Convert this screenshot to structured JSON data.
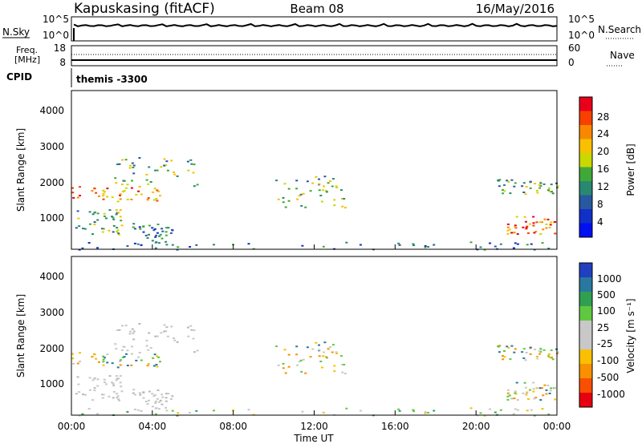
{
  "header": {
    "station": "Kapuskasing (fitACF)",
    "beam": "Beam 08",
    "date": "16/May/2016"
  },
  "panels": {
    "nsky_label": "N.Sky",
    "nsearch_label": "N.Search",
    "freq_label_line1": "Freq.",
    "freq_label_line2": "[MHz]",
    "nave_label": "Nave",
    "cpid_label": "CPID",
    "cpid_value": "themis -3300"
  },
  "noise_panel": {
    "left_ticks": [
      "10^5",
      "10^0"
    ],
    "right_ticks": [
      "10^5",
      "10^0"
    ]
  },
  "freq_panel": {
    "left_ticks": [
      "18",
      "8"
    ],
    "right_ticks": [
      "60",
      "0"
    ]
  },
  "power_colorbar": {
    "label": "Power [dB]",
    "ticks": [
      "28",
      "24",
      "20",
      "16",
      "12",
      "8",
      "4"
    ],
    "colors": [
      "#e8001a",
      "#f84000",
      "#f88800",
      "#f8c000",
      "#c8d800",
      "#40a838",
      "#288870",
      "#2858a0",
      "#1030c8",
      "#0010f0"
    ]
  },
  "velocity_colorbar": {
    "label": "Velocity [m s⁻¹]",
    "ticks": [
      "1000",
      "500",
      "100",
      "25",
      "-25",
      "-100",
      "-500",
      "-1000"
    ],
    "colors": [
      "#2040c0",
      "#2878a0",
      "#30a050",
      "#60c840",
      "#c8c8c8",
      "#c8c8c8",
      "#f8c000",
      "#f89000",
      "#f85000",
      "#e80010"
    ]
  },
  "chart_data": [
    {
      "type": "heatmap",
      "title": "Power",
      "ylabel": "Slant Range [km]",
      "yticks": [
        "1000",
        "2000",
        "3000",
        "4000"
      ],
      "ylim": [
        180,
        4500
      ],
      "xlim": [
        0,
        24
      ],
      "regions": [
        {
          "x": [
            0.0,
            4.6
          ],
          "y": [
            1500,
            1900
          ],
          "level": "high"
        },
        {
          "x": [
            2.0,
            6.2
          ],
          "y": [
            1900,
            2700
          ],
          "level": "mid"
        },
        {
          "x": [
            0.0,
            2.5
          ],
          "y": [
            600,
            1300
          ],
          "level": "mid"
        },
        {
          "x": [
            3.0,
            5.0
          ],
          "y": [
            300,
            900
          ],
          "level": "low"
        },
        {
          "x": [
            10.0,
            13.5
          ],
          "y": [
            1300,
            2200
          ],
          "level": "mid"
        },
        {
          "x": [
            21.0,
            24.0
          ],
          "y": [
            1700,
            2100
          ],
          "level": "mid"
        },
        {
          "x": [
            21.5,
            24.0
          ],
          "y": [
            600,
            1100
          ],
          "level": "high"
        },
        {
          "x": [
            0.0,
            24.0
          ],
          "y": [
            180,
            400
          ],
          "level": "low"
        }
      ]
    },
    {
      "type": "heatmap",
      "title": "Velocity",
      "ylabel": "Slant Range [km]",
      "yticks": [
        "1000",
        "2000",
        "3000",
        "4000"
      ],
      "ylim": [
        180,
        4500
      ],
      "xlim": [
        0,
        24
      ],
      "xticks": [
        "00:00",
        "04:00",
        "08:00",
        "12:00",
        "16:00",
        "20:00",
        "00:00"
      ],
      "xlabel": "Time UT"
    }
  ]
}
